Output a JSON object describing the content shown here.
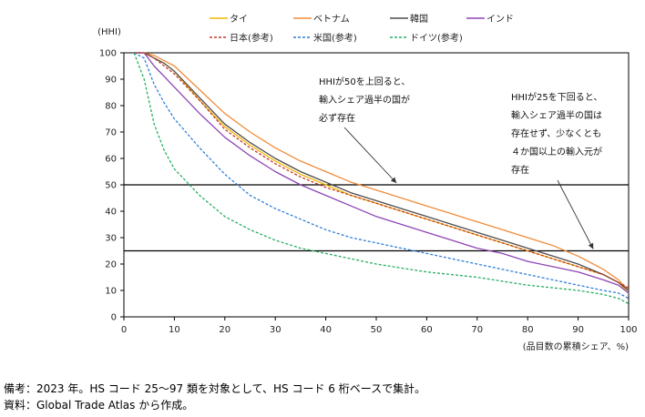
{
  "chart_data": {
    "type": "line",
    "ylabel": "(HHI)",
    "xlabel": "(品目数の累積シェア、%)",
    "xlim": [
      0,
      100
    ],
    "ylim": [
      0,
      100
    ],
    "x_ticks": [
      0,
      10,
      20,
      30,
      40,
      50,
      60,
      70,
      80,
      90,
      100
    ],
    "y_ticks": [
      0,
      10,
      20,
      30,
      40,
      50,
      60,
      70,
      80,
      90,
      100
    ],
    "reference_lines": [
      50,
      25
    ],
    "x": [
      2,
      4,
      6,
      8,
      10,
      15,
      20,
      25,
      30,
      35,
      40,
      45,
      50,
      55,
      60,
      65,
      70,
      75,
      80,
      85,
      90,
      95,
      98,
      100
    ],
    "series": [
      {
        "name": "タイ",
        "color": "#f2b705",
        "dash": "solid",
        "values": [
          100,
          100,
          98,
          96,
          93,
          82,
          72,
          65,
          59,
          54,
          50,
          46,
          43,
          40,
          37,
          34,
          31,
          28,
          25,
          22,
          19,
          16,
          13,
          9
        ]
      },
      {
        "name": "ベトナム",
        "color": "#f08c3a",
        "dash": "solid",
        "values": [
          100,
          100,
          99,
          97,
          95,
          86,
          77,
          70,
          64,
          59,
          55,
          51,
          48,
          45,
          42,
          39,
          36,
          33,
          30,
          27,
          23,
          18,
          14,
          10
        ]
      },
      {
        "name": "韓国",
        "color": "#4d4d4d",
        "dash": "solid",
        "values": [
          100,
          100,
          98,
          96,
          93,
          83,
          73,
          66,
          60,
          55,
          51,
          47,
          44,
          41,
          38,
          35,
          32,
          29,
          26,
          23,
          20,
          16,
          13,
          10
        ]
      },
      {
        "name": "インド",
        "color": "#8e44b5",
        "dash": "solid",
        "values": [
          100,
          100,
          95,
          91,
          87,
          77,
          68,
          61,
          55,
          50,
          46,
          42,
          38,
          35,
          32,
          29,
          26,
          24,
          21,
          19,
          17,
          14,
          12,
          9
        ]
      },
      {
        "name": "日本(参考)",
        "color": "#c0392b",
        "dash": "dashed",
        "values": [
          100,
          100,
          98,
          95,
          92,
          82,
          71,
          64,
          58,
          53,
          49,
          46,
          43,
          40,
          37,
          34,
          31,
          28,
          25,
          22,
          19,
          16,
          13,
          11
        ]
      },
      {
        "name": "米国(参考)",
        "color": "#2e7fd8",
        "dash": "dashed",
        "values": [
          100,
          98,
          88,
          81,
          75,
          64,
          54,
          46,
          41,
          37,
          33,
          30,
          28,
          26,
          24,
          22,
          20,
          18,
          16,
          14,
          12,
          10,
          9,
          7
        ]
      },
      {
        "name": "ドイツ(参考)",
        "color": "#27ae60",
        "dash": "dashed",
        "values": [
          100,
          90,
          73,
          63,
          56,
          46,
          38,
          33,
          29,
          26,
          24,
          22,
          20,
          18.5,
          17,
          16,
          15,
          13.5,
          12,
          11,
          10,
          8.5,
          7,
          5
        ]
      }
    ],
    "annotations": [
      {
        "lines": [
          "HHIが50を上回ると、",
          "輸入シェア過半の国が",
          "必ず存在"
        ],
        "arrow_to": [
          54,
          50
        ]
      },
      {
        "lines": [
          "HHIが25を下回ると、",
          "輸入シェア過半の国は",
          "存在せず、少なくとも",
          "４か国以上の輸入元が",
          "存在"
        ],
        "arrow_to": [
          93,
          25
        ]
      }
    ]
  },
  "notes": {
    "remark": "備考：2023 年。HS コード 25〜97 類を対象として、HS コード 6 桁ベースで集計。",
    "source": "資料：Global Trade Atlas から作成。"
  }
}
